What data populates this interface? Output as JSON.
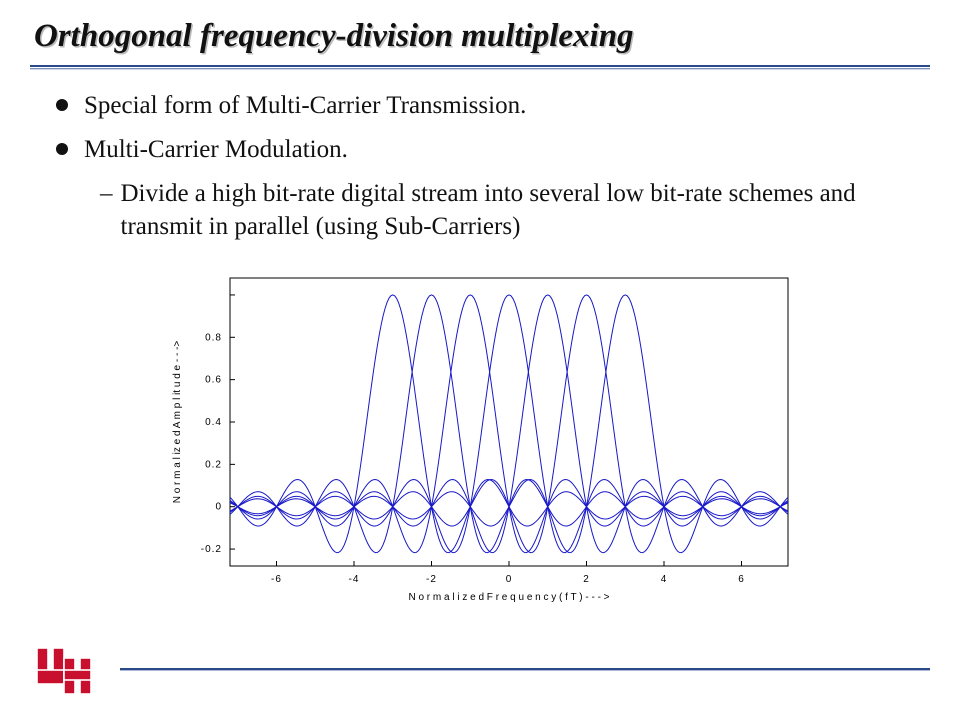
{
  "title": "Orthogonal frequency-division multiplexing",
  "bullets": [
    {
      "text": "Special form of Multi-Carrier Transmission."
    },
    {
      "text": "Multi-Carrier Modulation."
    }
  ],
  "sub": {
    "text": "Divide a high bit-rate digital stream into several low bit-rate schemes and transmit in parallel (using Sub-Carriers)"
  },
  "chart": {
    "type": "line",
    "xlabel": "N o r m  a l i z e d   F r e q u e n c y   ( f T )    - - - >",
    "ylabel": "N o r m a l iz e d  A m p l it u d e  - - ->",
    "label_fontsize": 10,
    "tick_fontsize": 10,
    "line_color": "#1818c8",
    "axis_color": "#000000",
    "background_color": "#ffffff",
    "line_width": 1,
    "xlim": [
      -7.2,
      7.2
    ],
    "ylim": [
      -0.28,
      1.08
    ],
    "xticks": [
      -6,
      -4,
      -2,
      0,
      2,
      4,
      6
    ],
    "yticks": [
      -0.2,
      0,
      0.2,
      0.4,
      0.6,
      0.8,
      1
    ],
    "ytick_labels": [
      "-0.2",
      "0",
      "0.2",
      "0.4",
      "0.6",
      "0.8",
      ""
    ],
    "subcarrier_centers": [
      -3,
      -2,
      -1,
      0,
      1,
      2,
      3
    ],
    "x_step": 0.05
  },
  "logo": {
    "fill": "#c8102e",
    "border": "#ffffff"
  }
}
